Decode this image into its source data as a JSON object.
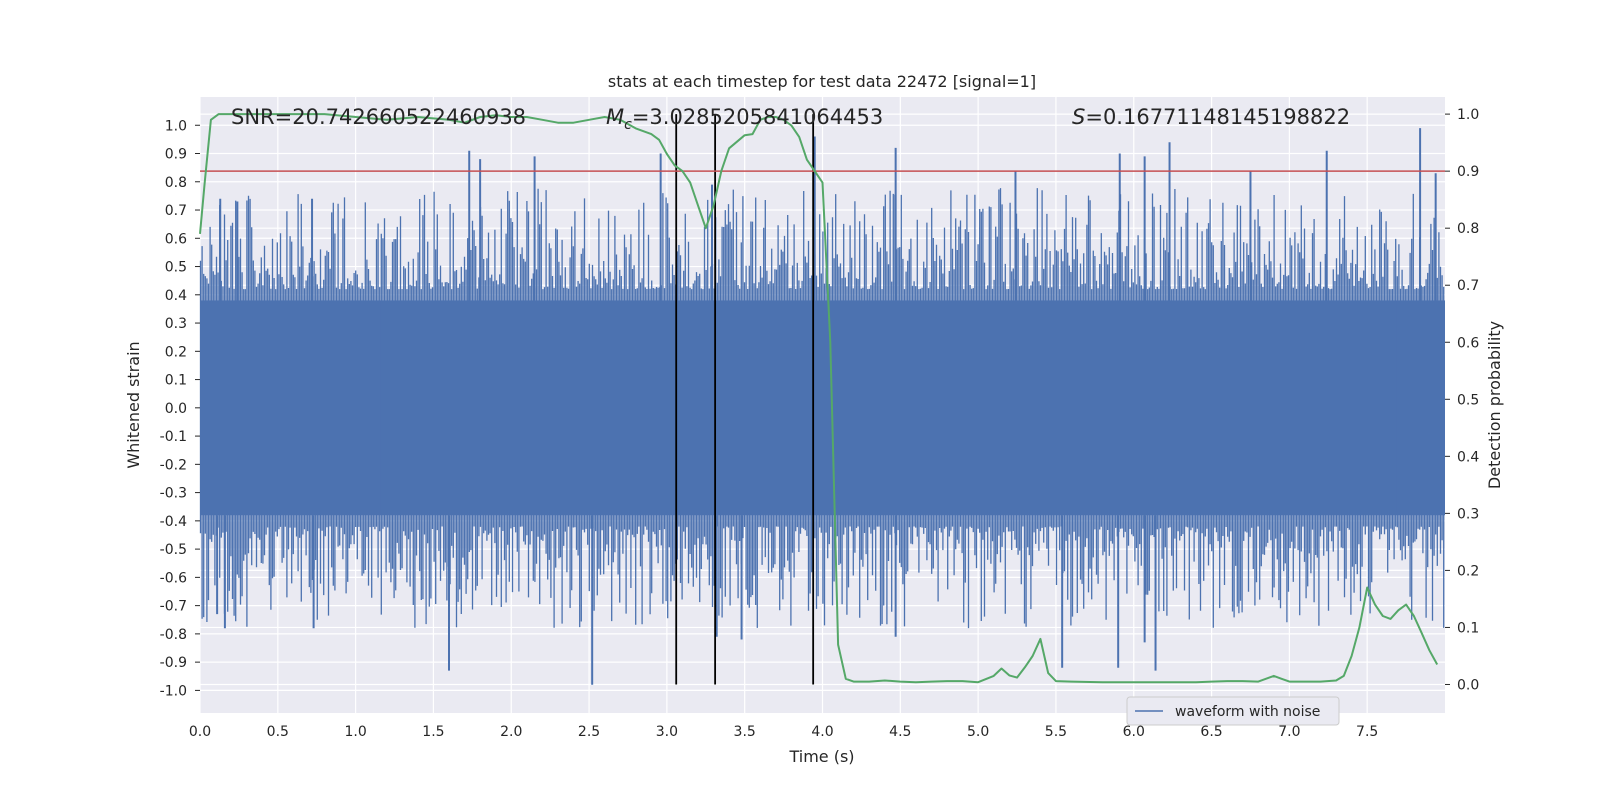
{
  "chart_data": {
    "type": "line",
    "title": "stats at each timestep for test data 22472 [signal=1]",
    "xlabel": "Time (s)",
    "ylabel_left": "Whitened strain",
    "ylabel_right": "Detection probability",
    "xlim": [
      0,
      8
    ],
    "ylim_left": [
      -1.08,
      1.1
    ],
    "ylim_right": [
      -0.05,
      1.03
    ],
    "x_ticks": [
      "0.0",
      "0.5",
      "1.0",
      "1.5",
      "2.0",
      "2.5",
      "3.0",
      "3.5",
      "4.0",
      "4.5",
      "5.0",
      "5.5",
      "6.0",
      "6.5",
      "7.0",
      "7.5"
    ],
    "y_ticks_left": [
      "1.0",
      "0.9",
      "0.8",
      "0.7",
      "0.6",
      "0.5",
      "0.4",
      "0.3",
      "0.2",
      "0.1",
      "0.0",
      "-0.1",
      "-0.2",
      "-0.3",
      "-0.4",
      "-0.5",
      "-0.6",
      "-0.7",
      "-0.8",
      "-0.9",
      "-1.0"
    ],
    "y_ticks_right": [
      "1.0",
      "0.9",
      "0.8",
      "0.7",
      "0.6",
      "0.5",
      "0.4",
      "0.3",
      "0.2",
      "0.1",
      "0.0"
    ],
    "annotations": {
      "snr": "SNR=20.742660522460938",
      "mc_symbol": "M",
      "mc_sub": "c",
      "mc_value": "=3.0285205841064453",
      "s_symbol": "S",
      "s_value": "=0.16771148145198822"
    },
    "threshold": {
      "axis": "right",
      "value": 0.9,
      "color": "#c44e52"
    },
    "vertical_lines": [
      3.06,
      3.31,
      3.94
    ],
    "waveform": {
      "name": "waveform with noise",
      "color": "#4c72b0",
      "core_amplitude": 0.38,
      "spikes": [
        {
          "t": 0.13,
          "v": 0.74
        },
        {
          "t": 0.24,
          "v": 0.73
        },
        {
          "t": 0.72,
          "v": 0.74
        },
        {
          "t": 1.73,
          "v": 0.91
        },
        {
          "t": 1.8,
          "v": 0.88
        },
        {
          "t": 2.15,
          "v": 0.89
        },
        {
          "t": 2.96,
          "v": 0.9
        },
        {
          "t": 3.29,
          "v": 0.79
        },
        {
          "t": 3.95,
          "v": 0.96
        },
        {
          "t": 4.47,
          "v": 0.92
        },
        {
          "t": 5.24,
          "v": 0.84
        },
        {
          "t": 5.91,
          "v": 0.9
        },
        {
          "t": 6.07,
          "v": 0.89
        },
        {
          "t": 6.23,
          "v": 0.94
        },
        {
          "t": 6.75,
          "v": 0.84
        },
        {
          "t": 7.24,
          "v": 0.91
        },
        {
          "t": 7.84,
          "v": 0.99
        },
        {
          "t": 7.94,
          "v": 0.83
        },
        {
          "t": 0.11,
          "v": -0.73
        },
        {
          "t": 0.16,
          "v": -0.78
        },
        {
          "t": 0.73,
          "v": -0.78
        },
        {
          "t": 1.6,
          "v": -0.93
        },
        {
          "t": 2.52,
          "v": -0.98
        },
        {
          "t": 3.32,
          "v": -0.81
        },
        {
          "t": 3.48,
          "v": -0.82
        },
        {
          "t": 4.47,
          "v": -0.81
        },
        {
          "t": 5.54,
          "v": -0.92
        },
        {
          "t": 5.9,
          "v": -0.92
        },
        {
          "t": 6.07,
          "v": -0.83
        },
        {
          "t": 6.14,
          "v": -0.93
        }
      ]
    },
    "probability": {
      "name": "Detection probability",
      "color": "#55a868",
      "x": [
        0.0,
        0.03,
        0.07,
        0.12,
        0.2,
        0.4,
        0.6,
        0.8,
        1.0,
        1.2,
        1.4,
        1.6,
        1.7,
        1.8,
        1.9,
        2.0,
        2.1,
        2.2,
        2.3,
        2.4,
        2.5,
        2.6,
        2.7,
        2.8,
        2.9,
        2.95,
        3.0,
        3.05,
        3.1,
        3.15,
        3.2,
        3.25,
        3.3,
        3.35,
        3.4,
        3.5,
        3.55,
        3.6,
        3.65,
        3.7,
        3.75,
        3.8,
        3.85,
        3.9,
        3.95,
        4.0,
        4.05,
        4.1,
        4.15,
        4.2,
        4.3,
        4.4,
        4.5,
        4.6,
        4.7,
        4.8,
        4.9,
        5.0,
        5.1,
        5.15,
        5.2,
        5.25,
        5.3,
        5.35,
        5.4,
        5.45,
        5.5,
        5.6,
        5.8,
        6.0,
        6.2,
        6.4,
        6.5,
        6.6,
        6.7,
        6.8,
        6.9,
        6.95,
        7.0,
        7.1,
        7.2,
        7.3,
        7.35,
        7.4,
        7.45,
        7.5,
        7.55,
        7.6,
        7.65,
        7.7,
        7.75,
        7.8,
        7.85,
        7.9,
        7.95
      ],
      "y": [
        0.79,
        0.88,
        0.99,
        1.0,
        1.0,
        1.0,
        1.0,
        1.0,
        0.995,
        0.99,
        0.995,
        0.99,
        0.985,
        0.995,
        0.998,
        0.995,
        0.995,
        0.99,
        0.985,
        0.985,
        0.99,
        0.995,
        0.99,
        0.975,
        0.965,
        0.955,
        0.93,
        0.91,
        0.9,
        0.88,
        0.84,
        0.8,
        0.84,
        0.9,
        0.94,
        0.963,
        0.965,
        0.99,
        0.995,
        0.995,
        0.99,
        0.98,
        0.96,
        0.92,
        0.9,
        0.88,
        0.6,
        0.07,
        0.01,
        0.005,
        0.005,
        0.007,
        0.005,
        0.004,
        0.005,
        0.006,
        0.006,
        0.004,
        0.015,
        0.028,
        0.016,
        0.012,
        0.03,
        0.05,
        0.08,
        0.02,
        0.006,
        0.005,
        0.004,
        0.004,
        0.004,
        0.004,
        0.005,
        0.006,
        0.006,
        0.005,
        0.015,
        0.01,
        0.005,
        0.005,
        0.005,
        0.007,
        0.015,
        0.05,
        0.1,
        0.17,
        0.14,
        0.12,
        0.115,
        0.13,
        0.14,
        0.12,
        0.09,
        0.06,
        0.035
      ]
    },
    "legend": {
      "placement": "lower-right",
      "entries": [
        "waveform with noise"
      ]
    },
    "grid": true
  }
}
